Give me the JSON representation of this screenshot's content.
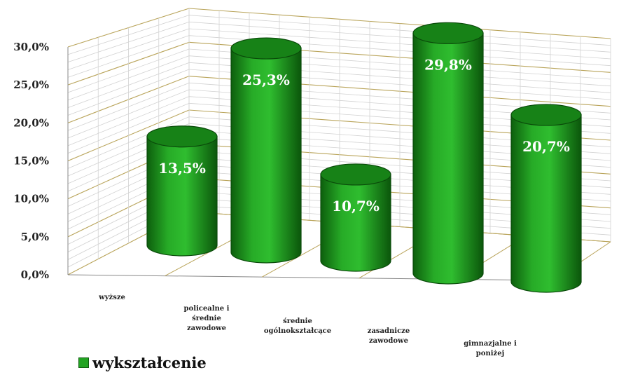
{
  "chart_data": {
    "type": "bar",
    "style": "3d-cylinder",
    "categories": [
      [
        "wyższe"
      ],
      [
        "policealne i",
        "średnie",
        "zawodowe"
      ],
      [
        "średnie",
        "ogólnokształcące"
      ],
      [
        "zasadnicze",
        "zawodowe"
      ],
      [
        "gimnazjalne i",
        "poniżej"
      ]
    ],
    "series": [
      {
        "name": "wykształcenie",
        "values": [
          13.5,
          25.3,
          10.7,
          29.8,
          20.7
        ]
      }
    ],
    "data_labels": [
      "13,5%",
      "25,3%",
      "10,7%",
      "29,8%",
      "20,7%"
    ],
    "y_ticks": [
      "0,0%",
      "5,0%",
      "10,0%",
      "15,0%",
      "20,0%",
      "25,0%",
      "30,0%"
    ],
    "ylim": [
      0,
      30
    ],
    "grid": true,
    "legend_position": "bottom-left",
    "colors": {
      "bar": "#1f9b1f",
      "bar_dark": "#0c5a0c",
      "bar_top": "#178217",
      "grid": "#c8c8c8",
      "floor_grid": "#c9b46a"
    }
  },
  "legend": {
    "label": "wykształcenie"
  }
}
